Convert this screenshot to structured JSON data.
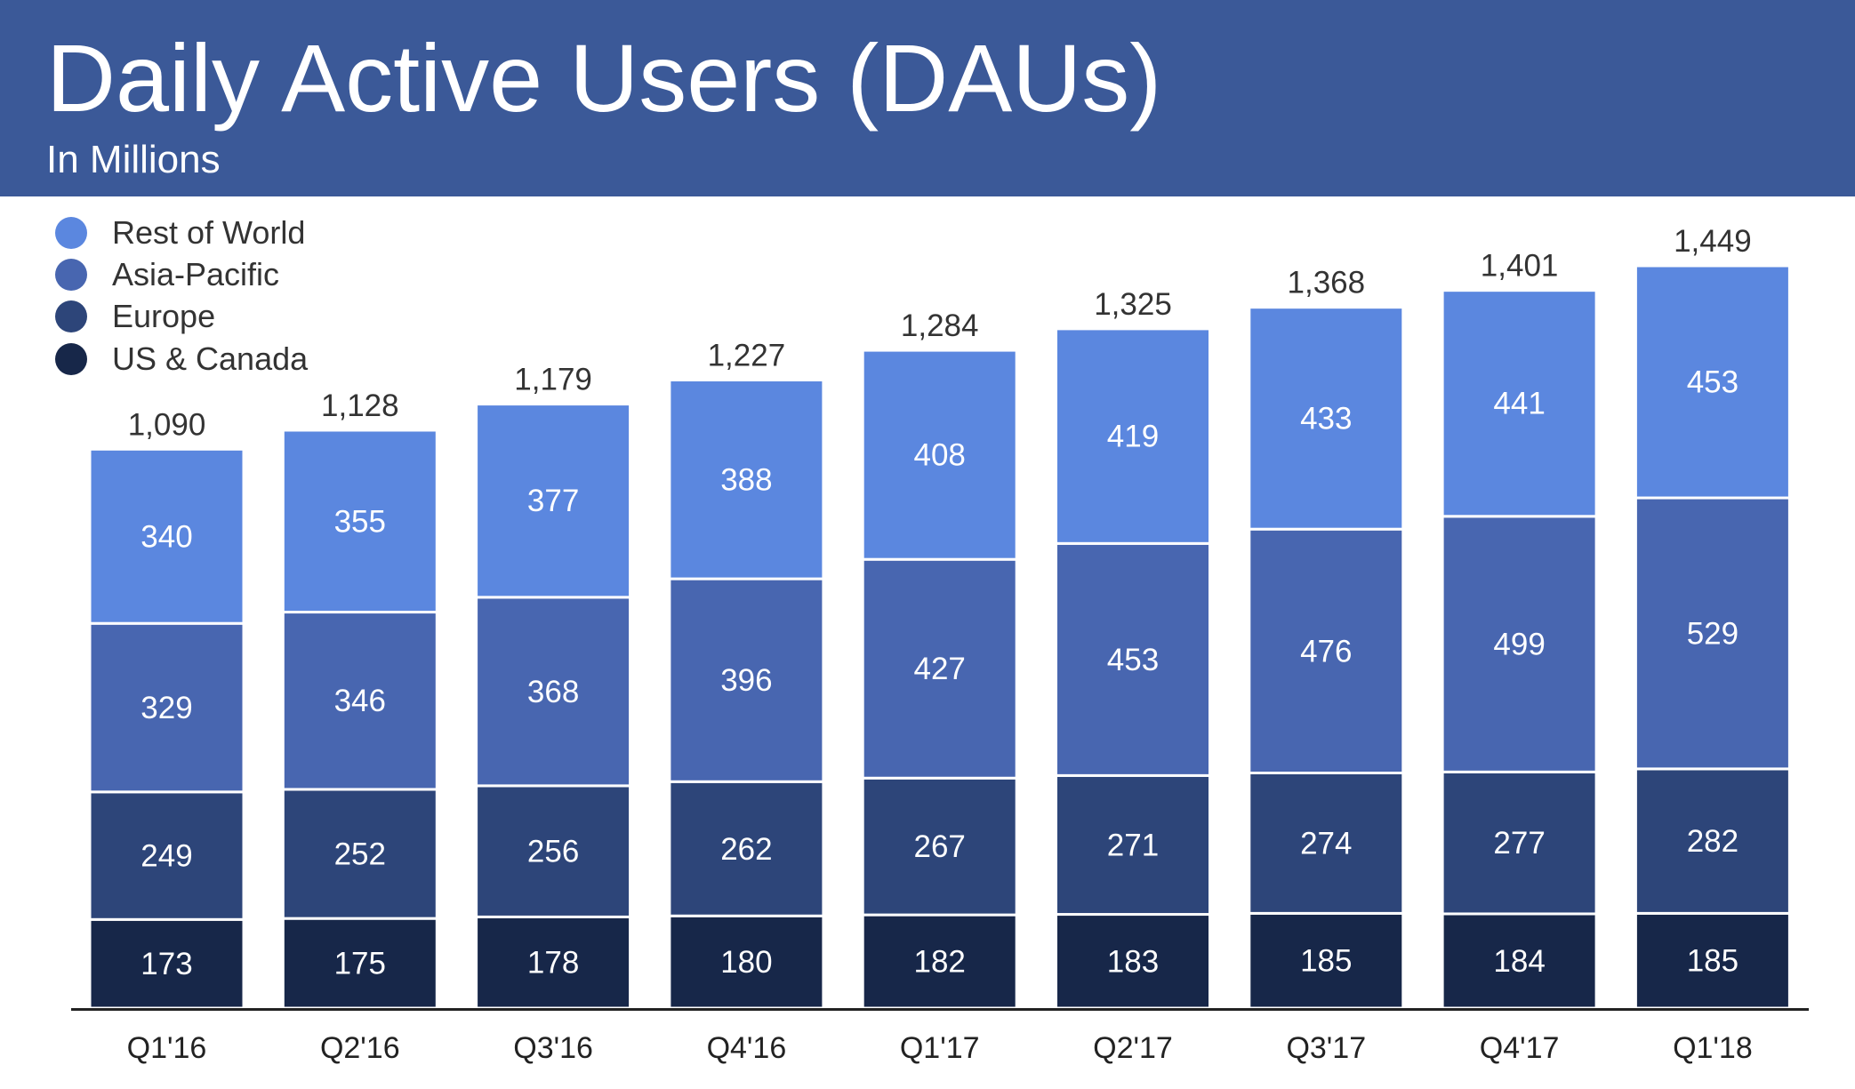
{
  "header": {
    "title": "Daily Active Users (DAUs)",
    "subtitle": "In Millions"
  },
  "colors": {
    "header_bg": "#3b5998",
    "rest_of_world": "#5b87df",
    "asia_pacific": "#4866b0",
    "europe": "#2d4579",
    "us_canada": "#172749",
    "axis": "#222222",
    "text": "#333333"
  },
  "legend": [
    {
      "label": "Rest of World",
      "color": "#5b87df"
    },
    {
      "label": "Asia-Pacific",
      "color": "#4866b0"
    },
    {
      "label": "Europe",
      "color": "#2d4579"
    },
    {
      "label": "US & Canada",
      "color": "#172749"
    }
  ],
  "chart_data": {
    "type": "bar",
    "stacked": true,
    "title": "Daily Active Users (DAUs)",
    "subtitle": "In Millions",
    "categories": [
      "Q1'16",
      "Q2'16",
      "Q3'16",
      "Q4'16",
      "Q1'17",
      "Q2'17",
      "Q3'17",
      "Q4'17",
      "Q1'18"
    ],
    "series": [
      {
        "name": "US & Canada",
        "color": "#172749",
        "values": [
          173,
          175,
          178,
          180,
          182,
          183,
          185,
          184,
          185
        ]
      },
      {
        "name": "Europe",
        "color": "#2d4579",
        "values": [
          249,
          252,
          256,
          262,
          267,
          271,
          274,
          277,
          282
        ]
      },
      {
        "name": "Asia-Pacific",
        "color": "#4866b0",
        "values": [
          329,
          346,
          368,
          396,
          427,
          453,
          476,
          499,
          529
        ]
      },
      {
        "name": "Rest of World",
        "color": "#5b87df",
        "values": [
          340,
          355,
          377,
          388,
          408,
          419,
          433,
          441,
          453
        ]
      }
    ],
    "totals": [
      "1,090",
      "1,128",
      "1,179",
      "1,227",
      "1,284",
      "1,325",
      "1,368",
      "1,401",
      "1,449"
    ],
    "ylim": [
      0,
      1449
    ],
    "grid": false,
    "legend_position": "top-left"
  }
}
